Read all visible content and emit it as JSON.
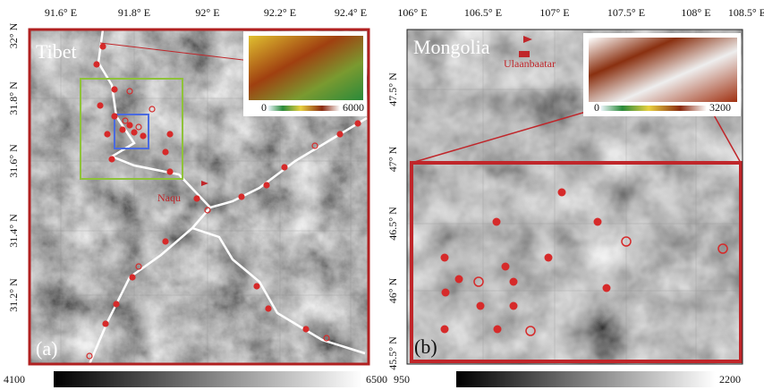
{
  "panel_a": {
    "label": "(a)",
    "region": "Tibet",
    "city": "Naqu",
    "x_ticks": [
      "91.6° E",
      "91.8° E",
      "92° E",
      "92.2° E",
      "92.4° E"
    ],
    "y_ticks": [
      "32° N",
      "31.8° N",
      "31.6° N",
      "31.4° N",
      "31.2° N"
    ],
    "colorbar": {
      "min": 4100,
      "max": 6500
    },
    "inset_colorbar": {
      "min": 0,
      "max": 6000
    }
  },
  "panel_b": {
    "label": "(b)",
    "region": "Mongolia",
    "city": "Ulaanbaatar",
    "x_ticks": [
      "106° E",
      "106.5° E",
      "107° E",
      "107.5° E",
      "108° E",
      "108.5° E"
    ],
    "y_ticks": [
      "47.5° N",
      "47° N",
      "46.5° N",
      "46° N",
      "45.5° N"
    ],
    "colorbar": {
      "min": 950,
      "max": 2200
    },
    "inset_colorbar": {
      "min": 0,
      "max": 3200
    }
  }
}
